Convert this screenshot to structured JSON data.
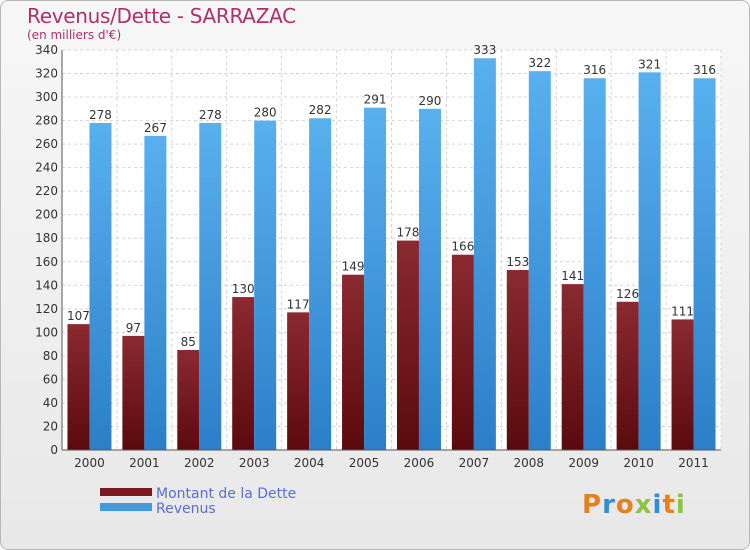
{
  "title": "Revenus/Dette - SARRAZAC",
  "subtitle": "(en milliers d'€)",
  "logo": "Proxiti",
  "colors": {
    "dette": "#7a1a1f",
    "revenus": "#3f9ae0",
    "title": "#b0306a"
  },
  "chart_data": {
    "type": "bar",
    "title": "Revenus/Dette - SARRAZAC",
    "ylabel": "(en milliers d'€)",
    "ylim": [
      0,
      340
    ],
    "yticks": [
      0,
      20,
      40,
      60,
      80,
      100,
      120,
      140,
      160,
      180,
      200,
      220,
      240,
      260,
      280,
      300,
      320,
      340
    ],
    "grid": true,
    "legend": "bottom-left",
    "categories": [
      "2000",
      "2001",
      "2002",
      "2003",
      "2004",
      "2005",
      "2006",
      "2007",
      "2008",
      "2009",
      "2010",
      "2011"
    ],
    "series": [
      {
        "name": "Montant de la Dette",
        "values": [
          107,
          97,
          85,
          130,
          117,
          149,
          178,
          166,
          153,
          141,
          126,
          111
        ]
      },
      {
        "name": "Revenus",
        "values": [
          278,
          267,
          278,
          280,
          282,
          291,
          290,
          333,
          322,
          316,
          321,
          316
        ]
      }
    ]
  }
}
